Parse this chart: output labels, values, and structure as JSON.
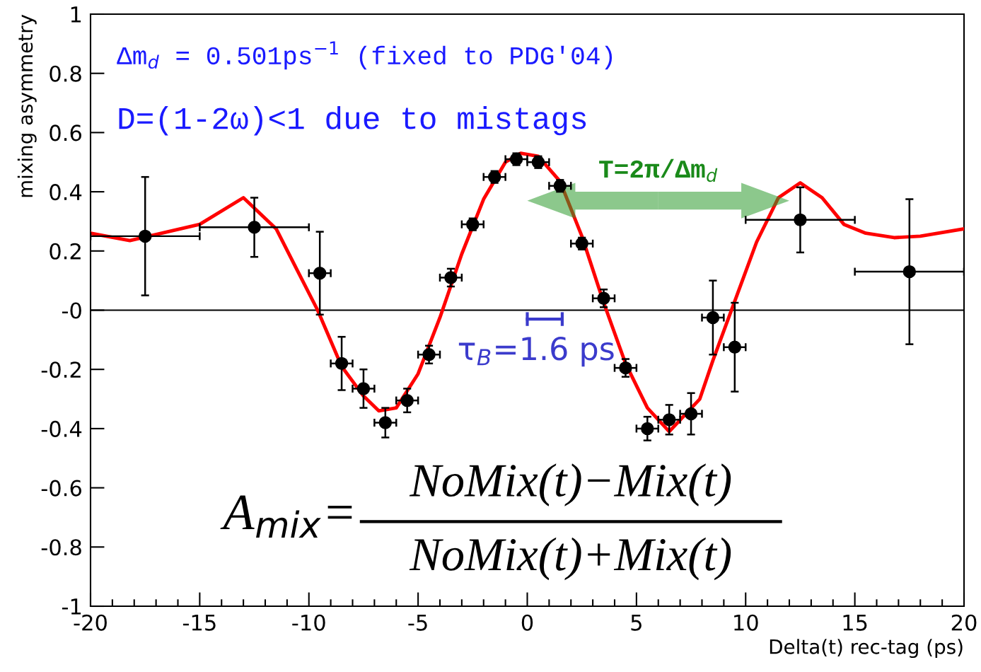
{
  "chart_data": {
    "type": "scatter",
    "xlabel": "Delta(t) rec-tag (ps)",
    "ylabel": "mixing asymmetry",
    "xlim": [
      -20,
      20
    ],
    "xticks": [
      -20,
      -15,
      -10,
      -5,
      0,
      5,
      10,
      15,
      20
    ],
    "ylim": [
      -1,
      1
    ],
    "yticks": [
      -1,
      -0.8,
      -0.6,
      -0.4,
      -0.2,
      {
        "value": 0,
        "label": "-0"
      },
      0.2,
      0.4,
      0.6,
      0.8,
      1
    ],
    "grid": false,
    "legend": false,
    "series": [
      {
        "type": "line",
        "color": "#ff0000",
        "line_style": "solid",
        "marker": "none",
        "x": [
          -20,
          -18.2,
          -15,
          -13,
          -11.5,
          -10.5,
          -9.6,
          -8.5,
          -7.5,
          -6.8,
          -6,
          -5,
          -4,
          -3,
          -2,
          -1,
          -0.3,
          0.5,
          1.5,
          2.5,
          3.5,
          4.5,
          5.5,
          6.5,
          7.9,
          8.5,
          9.5,
          10.5,
          11.5,
          12.5,
          13.5,
          14.5,
          15.5,
          16.8,
          18,
          20
        ],
        "values": [
          0.26,
          0.235,
          0.29,
          0.38,
          0.275,
          0.13,
          0,
          -0.19,
          -0.29,
          -0.34,
          -0.33,
          -0.215,
          -0.025,
          0.19,
          0.375,
          0.5,
          0.53,
          0.52,
          0.435,
          0.25,
          0.025,
          -0.18,
          -0.33,
          -0.41,
          -0.3,
          -0.17,
          0.03,
          0.23,
          0.38,
          0.43,
          0.38,
          0.29,
          0.26,
          0.245,
          0.25,
          0.275
        ]
      },
      {
        "color": "#000000",
        "marker": "circle",
        "x": [
          -17.5,
          -12.5,
          -9.5,
          -8.5,
          -7.5,
          -6.5,
          -5.5,
          -4.5,
          -3.5,
          -2.5,
          -1.5,
          -0.5,
          0.5,
          1.5,
          2.5,
          3.5,
          4.5,
          5.5,
          6.5,
          7.5,
          8.5,
          9.5,
          12.5,
          17.5
        ],
        "values": [
          0.25,
          0.28,
          0.125,
          -0.18,
          -0.265,
          -0.38,
          -0.305,
          -0.15,
          0.11,
          0.29,
          0.45,
          0.51,
          0.5,
          0.42,
          0.225,
          0.04,
          -0.195,
          -0.4,
          -0.37,
          -0.35,
          -0.025,
          -0.125,
          0.305,
          0.13
        ],
        "errors": [
          0.2,
          0.1,
          0.14,
          0.09,
          0.065,
          0.05,
          0.04,
          0.03,
          0.03,
          0.02,
          0.02,
          0.02,
          0.02,
          0.02,
          0.02,
          0.03,
          0.03,
          0.04,
          0.05,
          0.07,
          0.125,
          0.15,
          0.11,
          0.245
        ],
        "xerrors": [
          2.5,
          2.5,
          0.5,
          0.5,
          0.5,
          0.5,
          0.5,
          0.5,
          0.5,
          0.5,
          0.5,
          0.5,
          0.5,
          0.5,
          0.5,
          0.5,
          0.5,
          0.5,
          0.5,
          0.5,
          0.5,
          0.5,
          2.5,
          2.5
        ]
      }
    ],
    "ref_lines": [
      {
        "axis": "y",
        "value": 0,
        "color": "#000000"
      }
    ],
    "annotations": [
      "Δm$_{d}$ = 0.501ps$^{−1}$ (fixed to PDG'04)",
      "D=(1-2ω)<1 due to mistags",
      "T=2π/Δm$_{d}$",
      "τ$_{B}$=1.6 ps",
      "A$_{mix}$=",
      "NoMix(t)−Mix(t)",
      "NoMix(t)+Mix(t)"
    ]
  }
}
